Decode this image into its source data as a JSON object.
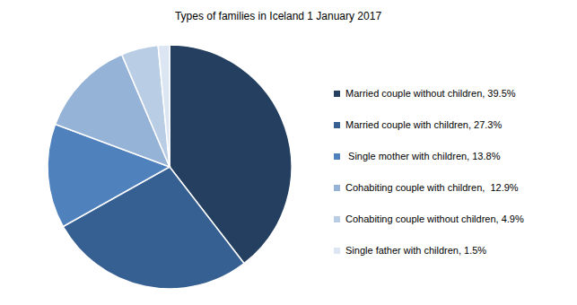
{
  "chart_data": {
    "type": "pie",
    "title": "Types of families in Iceland 1 January 2017",
    "categories": [
      "Married couple without children, 39.5%",
      "Married couple with children, 27.3%",
      " Single mother with children, 13.8%",
      "Cohabiting couple with children,  12.9%",
      "Cohabiting couple without children, 4.9%",
      "Single father with children, 1.5%"
    ],
    "values": [
      39.5,
      27.3,
      13.8,
      12.9,
      4.9,
      1.5
    ],
    "colors": [
      "#243f60",
      "#376092",
      "#4f81bd",
      "#95b3d7",
      "#b9cde5",
      "#dce6f2"
    ],
    "legend": "right"
  }
}
